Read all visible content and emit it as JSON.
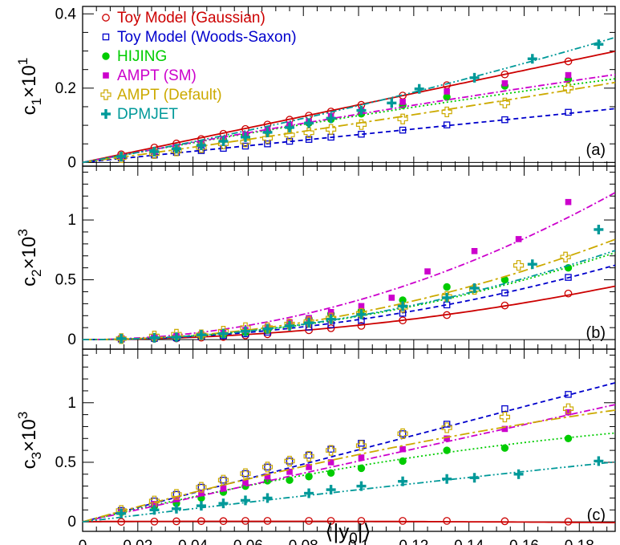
{
  "chart_data": {
    "type": "scatter",
    "xlim": [
      0,
      0.193
    ],
    "xticks": [
      0,
      0.02,
      0.04,
      0.06,
      0.08,
      0.1,
      0.12,
      0.14,
      0.16,
      0.18
    ],
    "xtick_labels": [
      "0",
      "0.02",
      "0.04",
      "0.06",
      "0.08",
      "0.1",
      "0.12",
      "0.14",
      "0.16",
      "0.18"
    ],
    "xlabel_parts": {
      "open": "⟨|y",
      "sub": "0",
      "close": "|⟩"
    },
    "legend": {
      "placement": "top-left of panel (a)",
      "entries": [
        "Toy Model (Gaussian)",
        "Toy Model (Woods-Saxon)",
        "HIJING",
        "AMPT (SM)",
        "AMPT (Default)",
        "DPMJET"
      ]
    },
    "series_styles": [
      {
        "color": "#cc0000",
        "marker": "open-circle",
        "line": "solid"
      },
      {
        "color": "#0000cc",
        "marker": "open-square",
        "line": "dashed"
      },
      {
        "color": "#00cc00",
        "marker": "filled-circle",
        "line": "dotted"
      },
      {
        "color": "#cc00cc",
        "marker": "filled-square",
        "line": "dashdot"
      },
      {
        "color": "#ccaa00",
        "marker": "open-cross",
        "line": "dashdot-long"
      },
      {
        "color": "#009999",
        "marker": "filled-cross",
        "line": "dashdotdot"
      }
    ],
    "panels": [
      {
        "tag": "(a)",
        "ylabel_parts": {
          "base": "c",
          "sub": "1",
          "mid": "×10",
          "sup": "1"
        },
        "ylim": [
          -0.01,
          0.42
        ],
        "yticks": [
          0,
          0.2,
          0.4
        ],
        "ytick_labels": [
          "0",
          "0.2",
          "0.4"
        ],
        "yminor": 0.05,
        "series": [
          {
            "x": [
              0.014,
              0.026,
              0.034,
              0.043,
              0.051,
              0.059,
              0.067,
              0.075,
              0.082,
              0.09,
              0.101,
              0.116,
              0.132,
              0.153,
              0.176
            ],
            "y": [
              0.022,
              0.04,
              0.051,
              0.063,
              0.077,
              0.09,
              0.102,
              0.115,
              0.126,
              0.137,
              0.155,
              0.18,
              0.208,
              0.237,
              0.272
            ],
            "curve": {
              "type": "poly",
              "c": [
                0,
                1.55,
                0
              ]
            }
          },
          {
            "x": [
              0.014,
              0.026,
              0.034,
              0.043,
              0.051,
              0.059,
              0.067,
              0.075,
              0.082,
              0.09,
              0.101,
              0.116,
              0.132,
              0.153,
              0.176
            ],
            "y": [
              0.012,
              0.02,
              0.027,
              0.032,
              0.038,
              0.044,
              0.05,
              0.057,
              0.062,
              0.068,
              0.076,
              0.087,
              0.101,
              0.115,
              0.135
            ],
            "curve": {
              "type": "poly",
              "c": [
                0,
                0.75,
                0
              ]
            }
          },
          {
            "x": [
              0.014,
              0.026,
              0.034,
              0.043,
              0.051,
              0.059,
              0.067,
              0.075,
              0.082,
              0.09,
              0.101,
              0.116,
              0.132,
              0.153,
              0.176
            ],
            "y": [
              0.016,
              0.03,
              0.038,
              0.05,
              0.062,
              0.073,
              0.084,
              0.097,
              0.106,
              0.116,
              0.131,
              0.154,
              0.176,
              0.206,
              0.224
            ],
            "curve": {
              "type": "poly",
              "c": [
                0,
                1.36,
                -1.0
              ]
            }
          },
          {
            "x": [
              0.014,
              0.026,
              0.034,
              0.043,
              0.051,
              0.059,
              0.067,
              0.075,
              0.082,
              0.09,
              0.101,
              0.116,
              0.132,
              0.153,
              0.176
            ],
            "y": [
              0.017,
              0.03,
              0.041,
              0.05,
              0.063,
              0.075,
              0.088,
              0.102,
              0.11,
              0.125,
              0.139,
              0.163,
              0.191,
              0.213,
              0.235
            ],
            "curve": {
              "type": "poly",
              "c": [
                0,
                1.38,
                -0.8
              ]
            }
          },
          {
            "x": [
              0.014,
              0.026,
              0.034,
              0.043,
              0.051,
              0.059,
              0.067,
              0.075,
              0.082,
              0.09,
              0.101,
              0.116,
              0.132,
              0.153,
              0.176
            ],
            "y": [
              0.013,
              0.024,
              0.031,
              0.04,
              0.05,
              0.055,
              0.065,
              0.074,
              0.08,
              0.089,
              0.102,
              0.117,
              0.136,
              0.16,
              0.2
            ],
            "curve": {
              "type": "poly",
              "c": [
                0,
                1.0,
                0.6
              ]
            }
          },
          {
            "x": [
              0.014,
              0.026,
              0.034,
              0.043,
              0.051,
              0.059,
              0.067,
              0.075,
              0.082,
              0.09,
              0.101,
              0.112,
              0.122,
              0.142,
              0.163,
              0.187
            ],
            "y": [
              0.016,
              0.029,
              0.037,
              0.046,
              0.057,
              0.068,
              0.081,
              0.094,
              0.106,
              0.119,
              0.14,
              0.16,
              0.198,
              0.228,
              0.279,
              0.318
            ],
            "curve": {
              "type": "poly",
              "c": [
                0,
                1.3,
                2.3
              ]
            }
          }
        ]
      },
      {
        "tag": "(b)",
        "ylabel_parts": {
          "base": "c",
          "sub": "2",
          "mid": "×10",
          "sup": "3"
        },
        "ylim": [
          -0.08,
          1.45
        ],
        "yticks": [
          0,
          0.5,
          1
        ],
        "ytick_labels": [
          "0",
          "0.5",
          "1"
        ],
        "yminor": 0.1,
        "series": [
          {
            "x": [
              0.014,
              0.026,
              0.034,
              0.043,
              0.051,
              0.059,
              0.067,
              0.082,
              0.09,
              0.101,
              0.116,
              0.132,
              0.153,
              0.176
            ],
            "y": [
              0.004,
              0.008,
              0.01,
              0.016,
              0.022,
              0.035,
              0.045,
              0.078,
              0.095,
              0.115,
              0.16,
              0.205,
              0.285,
              0.385
            ],
            "curve": {
              "type": "poly",
              "c": [
                0,
                0,
                12.0
              ]
            }
          },
          {
            "x": [
              0.014,
              0.026,
              0.034,
              0.043,
              0.051,
              0.059,
              0.067,
              0.082,
              0.09,
              0.101,
              0.116,
              0.132,
              0.153,
              0.176
            ],
            "y": [
              0.005,
              0.01,
              0.015,
              0.023,
              0.032,
              0.048,
              0.062,
              0.105,
              0.125,
              0.16,
              0.22,
              0.29,
              0.39,
              0.52
            ],
            "curve": {
              "type": "poly",
              "c": [
                0,
                0,
                16.7
              ]
            }
          },
          {
            "x": [
              0.014,
              0.026,
              0.034,
              0.043,
              0.051,
              0.059,
              0.067,
              0.075,
              0.082,
              0.09,
              0.101,
              0.116,
              0.132,
              0.153,
              0.176
            ],
            "y": [
              0.008,
              0.012,
              0.02,
              0.03,
              0.043,
              0.06,
              0.08,
              0.125,
              0.175,
              0.215,
              0.24,
              0.33,
              0.44,
              0.5,
              0.6
            ],
            "curve": {
              "type": "poly",
              "c": [
                0,
                0,
                19.5
              ]
            }
          },
          {
            "x": [
              0.014,
              0.026,
              0.034,
              0.043,
              0.051,
              0.059,
              0.067,
              0.075,
              0.082,
              0.09,
              0.101,
              0.112,
              0.125,
              0.142,
              0.158,
              0.176
            ],
            "y": [
              0.01,
              0.02,
              0.03,
              0.043,
              0.062,
              0.08,
              0.105,
              0.145,
              0.18,
              0.23,
              0.28,
              0.35,
              0.57,
              0.74,
              0.84,
              1.15
            ],
            "curve": {
              "type": "poly",
              "c": [
                0,
                0,
                33.0
              ]
            }
          },
          {
            "x": [
              0.014,
              0.026,
              0.034,
              0.043,
              0.051,
              0.059,
              0.067,
              0.075,
              0.082,
              0.09,
              0.101,
              0.116,
              0.132,
              0.142,
              0.158,
              0.175
            ],
            "y": [
              0.008,
              0.03,
              0.045,
              0.04,
              0.07,
              0.1,
              0.1,
              0.13,
              0.15,
              0.18,
              0.22,
              0.27,
              0.36,
              0.42,
              0.62,
              0.69
            ],
            "curve": {
              "type": "poly",
              "c": [
                0,
                0,
                22.5
              ]
            }
          },
          {
            "x": [
              0.014,
              0.026,
              0.034,
              0.043,
              0.051,
              0.059,
              0.067,
              0.075,
              0.082,
              0.09,
              0.101,
              0.116,
              0.132,
              0.142,
              0.163,
              0.187
            ],
            "y": [
              0.008,
              0.015,
              0.02,
              0.04,
              0.05,
              0.07,
              0.09,
              0.115,
              0.14,
              0.17,
              0.21,
              0.28,
              0.35,
              0.43,
              0.63,
              0.92
            ],
            "curve": {
              "type": "poly",
              "c": [
                0,
                0,
                20.0
              ]
            }
          }
        ]
      },
      {
        "tag": "(c)",
        "ylabel_parts": {
          "base": "c",
          "sub": "3",
          "mid": "×10",
          "sup": "3"
        },
        "ylim": [
          -0.08,
          1.45
        ],
        "yticks": [
          0,
          0.5,
          1
        ],
        "ytick_labels": [
          "0",
          "0.5",
          "1"
        ],
        "yminor": 0.1,
        "series": [
          {
            "x": [
              0.014,
              0.026,
              0.034,
              0.043,
              0.051,
              0.059,
              0.067,
              0.082,
              0.09,
              0.101,
              0.116,
              0.132,
              0.153,
              0.176
            ],
            "y": [
              0.0,
              0.002,
              0.004,
              0.006,
              0.006,
              0.008,
              0.008,
              0.008,
              0.008,
              0.008,
              0.008,
              0.008,
              0.005,
              0.002
            ],
            "curve": {
              "type": "poly",
              "c": [
                0.002,
                0.08,
                -0.65
              ]
            }
          },
          {
            "x": [
              0.014,
              0.026,
              0.034,
              0.043,
              0.051,
              0.059,
              0.067,
              0.075,
              0.082,
              0.09,
              0.101,
              0.116,
              0.132,
              0.153,
              0.176
            ],
            "y": [
              0.095,
              0.175,
              0.23,
              0.29,
              0.35,
              0.405,
              0.46,
              0.51,
              0.56,
              0.61,
              0.66,
              0.74,
              0.82,
              0.95,
              1.07
            ],
            "curve": {
              "type": "poly",
              "c": [
                0,
                6.05,
                0
              ]
            }
          },
          {
            "x": [
              0.014,
              0.026,
              0.034,
              0.043,
              0.051,
              0.059,
              0.067,
              0.075,
              0.082,
              0.09,
              0.101,
              0.116,
              0.132,
              0.153,
              0.176
            ],
            "y": [
              0.08,
              0.13,
              0.155,
              0.2,
              0.25,
              0.3,
              0.345,
              0.35,
              0.38,
              0.41,
              0.45,
              0.51,
              0.6,
              0.62,
              0.7
            ],
            "curve": {
              "type": "poly",
              "c": [
                0,
                5.6,
                -9.0
              ]
            }
          },
          {
            "x": [
              0.014,
              0.026,
              0.034,
              0.043,
              0.051,
              0.059,
              0.067,
              0.075,
              0.082,
              0.09,
              0.101,
              0.116,
              0.132,
              0.153,
              0.176
            ],
            "y": [
              0.085,
              0.15,
              0.19,
              0.24,
              0.28,
              0.33,
              0.38,
              0.42,
              0.46,
              0.5,
              0.54,
              0.61,
              0.7,
              0.78,
              0.92
            ],
            "curve": {
              "type": "poly",
              "c": [
                0,
                5.1,
                0
              ]
            }
          },
          {
            "x": [
              0.014,
              0.026,
              0.034,
              0.043,
              0.051,
              0.059,
              0.067,
              0.075,
              0.082,
              0.09,
              0.101,
              0.116,
              0.132,
              0.153,
              0.176
            ],
            "y": [
              0.095,
              0.175,
              0.23,
              0.29,
              0.35,
              0.405,
              0.46,
              0.51,
              0.55,
              0.6,
              0.64,
              0.74,
              0.79,
              0.88,
              0.95
            ],
            "curve": {
              "type": "poly",
              "c": [
                0,
                6.5,
                -8.5
              ]
            }
          },
          {
            "x": [
              0.014,
              0.026,
              0.034,
              0.043,
              0.051,
              0.059,
              0.067,
              0.082,
              0.09,
              0.101,
              0.116,
              0.132,
              0.142,
              0.158,
              0.187
            ],
            "y": [
              0.07,
              0.1,
              0.11,
              0.135,
              0.155,
              0.18,
              0.2,
              0.24,
              0.27,
              0.3,
              0.34,
              0.36,
              0.37,
              0.4,
              0.51
            ],
            "curve": {
              "type": "poly",
              "c": [
                0,
                2.8,
                -1.0
              ]
            }
          }
        ]
      }
    ]
  }
}
